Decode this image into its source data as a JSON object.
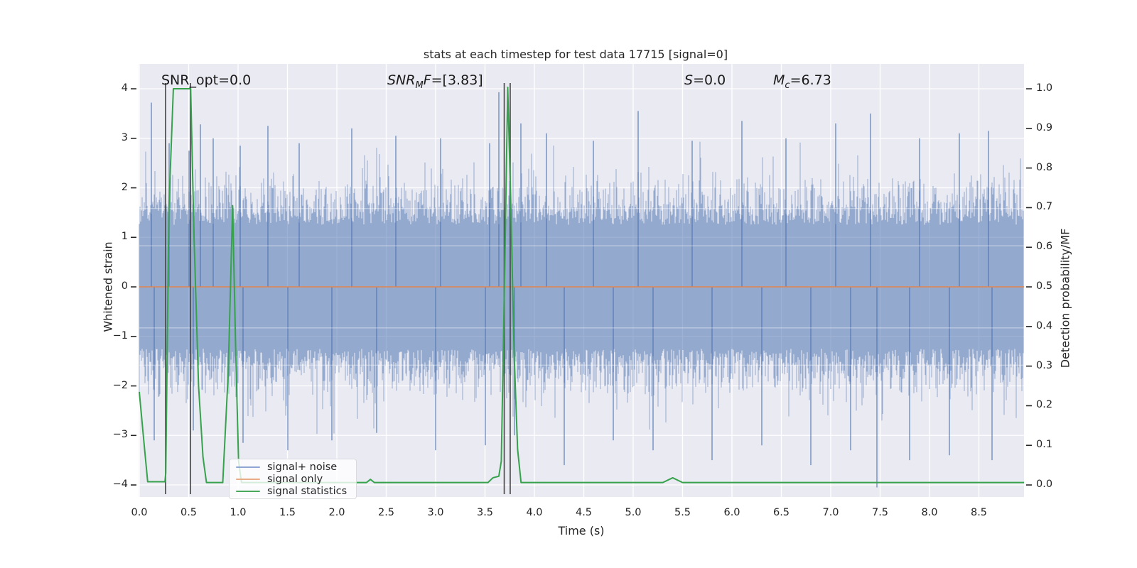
{
  "figure": {
    "title": "stats at each timestep for test data 17715 [signal=0]"
  },
  "chart_data": {
    "type": "line",
    "title": "stats at each timestep for test data 17715 [signal=0]",
    "xlabel": "Time (s)",
    "ylabel_left": "Whitened strain",
    "ylabel_right": "Detection probability/MF",
    "xlim": [
      0,
      8.96
    ],
    "ylim_left": [
      -4.25,
      4.5
    ],
    "ylim_right": [
      -0.045,
      1.045
    ],
    "grid": "on",
    "background": "#eaeaf2",
    "grid_color": "#ffffff",
    "x_ticks": [
      "0.0",
      "0.5",
      "1.0",
      "1.5",
      "2.0",
      "2.5",
      "3.0",
      "3.5",
      "4.0",
      "4.5",
      "5.0",
      "5.5",
      "6.0",
      "6.5",
      "7.0",
      "7.5",
      "8.0",
      "8.5"
    ],
    "x_tick_values": [
      0,
      0.5,
      1,
      1.5,
      2,
      2.5,
      3,
      3.5,
      4,
      4.5,
      5,
      5.5,
      6,
      6.5,
      7,
      7.5,
      8,
      8.5
    ],
    "y_ticks_left": [
      "4",
      "3",
      "2",
      "1",
      "0",
      "−1",
      "−2",
      "−3",
      "−4"
    ],
    "y_tick_values_left": [
      4,
      3,
      2,
      1,
      0,
      -1,
      -2,
      -3,
      -4
    ],
    "y_ticks_right": [
      "1.0",
      "0.9",
      "0.8",
      "0.7",
      "0.6",
      "0.5",
      "0.4",
      "0.3",
      "0.2",
      "0.1",
      "0.0"
    ],
    "y_tick_values_right": [
      1.0,
      0.9,
      0.8,
      0.7,
      0.6,
      0.5,
      0.4,
      0.3,
      0.2,
      0.1,
      0.0
    ],
    "annotations": {
      "snr_opt": {
        "text": "SNR_opt=0.0"
      },
      "snr_mf": {
        "main": "SNR",
        "sub": "M",
        "tail": "F",
        "value": "=[3.83]"
      },
      "s": {
        "main": "S",
        "value": "=0.0"
      },
      "mc": {
        "main": "M",
        "sub": "c",
        "value": "=6.73"
      }
    },
    "series": [
      {
        "name": "signal+ noise",
        "type": "noise_band",
        "color": "#4c72b0",
        "alpha": 0.55,
        "mean": 0,
        "core_halfwidth": 1.25,
        "tail_sigma": 0.5,
        "seed": 17715,
        "notable_spikes": [
          [
            0.12,
            3.72
          ],
          [
            0.3,
            2.9
          ],
          [
            0.5,
            2.75
          ],
          [
            0.62,
            3.28
          ],
          [
            0.75,
            3.0
          ],
          [
            1.02,
            2.85
          ],
          [
            1.3,
            3.25
          ],
          [
            1.62,
            2.9
          ],
          [
            2.15,
            3.2
          ],
          [
            2.6,
            3.05
          ],
          [
            3.05,
            3.0
          ],
          [
            3.55,
            2.9
          ],
          [
            3.64,
            3.93
          ],
          [
            3.86,
            3.3
          ],
          [
            4.12,
            3.1
          ],
          [
            4.6,
            2.95
          ],
          [
            5.05,
            3.55
          ],
          [
            5.6,
            2.95
          ],
          [
            6.1,
            3.35
          ],
          [
            6.55,
            3.0
          ],
          [
            7.05,
            3.3
          ],
          [
            7.4,
            3.5
          ],
          [
            7.9,
            3.0
          ],
          [
            8.3,
            3.1
          ],
          [
            8.6,
            3.15
          ],
          [
            0.15,
            -3.1
          ],
          [
            0.55,
            -2.9
          ],
          [
            1.05,
            -3.15
          ],
          [
            1.5,
            -3.3
          ],
          [
            1.95,
            -3.1
          ],
          [
            2.4,
            -2.95
          ],
          [
            3.0,
            -3.3
          ],
          [
            3.5,
            -3.2
          ],
          [
            3.8,
            -3.0
          ],
          [
            4.3,
            -3.6
          ],
          [
            4.8,
            -3.1
          ],
          [
            5.2,
            -3.3
          ],
          [
            5.8,
            -3.5
          ],
          [
            6.3,
            -3.2
          ],
          [
            6.8,
            -3.6
          ],
          [
            7.2,
            -3.3
          ],
          [
            7.47,
            -4.05
          ],
          [
            7.8,
            -3.5
          ],
          [
            8.2,
            -3.4
          ],
          [
            8.63,
            -3.5
          ]
        ]
      },
      {
        "name": "signal only",
        "type": "line",
        "color": "#dd8452",
        "constant_value": 0
      },
      {
        "name": "signal statistics",
        "type": "line",
        "color": "#36a24b",
        "points_t_prob": [
          [
            0.0,
            0.235
          ],
          [
            0.05,
            0.1
          ],
          [
            0.085,
            0.008
          ],
          [
            0.26,
            0.008
          ],
          [
            0.268,
            0.03
          ],
          [
            0.3,
            0.7
          ],
          [
            0.345,
            1.0
          ],
          [
            0.52,
            1.0
          ],
          [
            0.555,
            0.62
          ],
          [
            0.6,
            0.25
          ],
          [
            0.645,
            0.07
          ],
          [
            0.68,
            0.006
          ],
          [
            0.845,
            0.006
          ],
          [
            0.9,
            0.28
          ],
          [
            0.945,
            0.705
          ],
          [
            0.975,
            0.35
          ],
          [
            1.005,
            0.06
          ],
          [
            1.035,
            0.006
          ],
          [
            2.3,
            0.006
          ],
          [
            2.34,
            0.014
          ],
          [
            2.38,
            0.006
          ],
          [
            3.53,
            0.006
          ],
          [
            3.58,
            0.018
          ],
          [
            3.64,
            0.022
          ],
          [
            3.665,
            0.06
          ],
          [
            3.7,
            0.55
          ],
          [
            3.73,
            1.005
          ],
          [
            3.76,
            0.72
          ],
          [
            3.795,
            0.33
          ],
          [
            3.83,
            0.09
          ],
          [
            3.865,
            0.006
          ],
          [
            5.3,
            0.006
          ],
          [
            5.4,
            0.018
          ],
          [
            5.5,
            0.006
          ],
          [
            8.96,
            0.006
          ]
        ]
      }
    ],
    "vlines": {
      "color": "#454545",
      "t": [
        0.266,
        0.518,
        3.695,
        3.755
      ]
    },
    "legend": {
      "position": "lower left",
      "entries": [
        {
          "label": "signal+ noise",
          "color": "#8ea6d4"
        },
        {
          "label": "signal only",
          "color": "#e7ab85"
        },
        {
          "label": "signal statistics",
          "color": "#4aa85c"
        }
      ]
    }
  }
}
